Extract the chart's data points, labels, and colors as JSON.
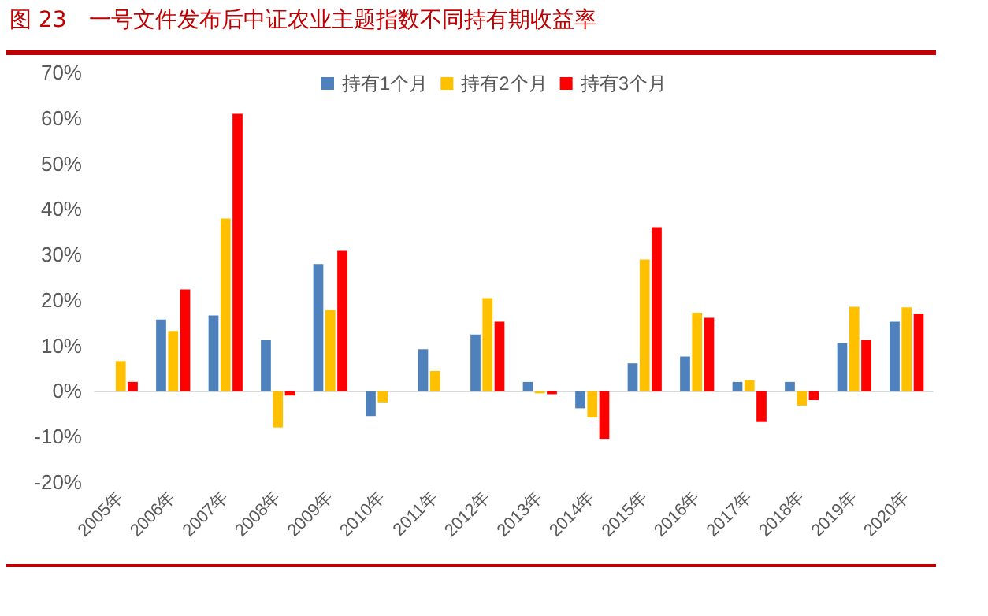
{
  "chart_data": {
    "type": "bar",
    "title": "图 23　一号文件发布后中证农业主题指数不同持有期收益率",
    "categories": [
      "2005年",
      "2006年",
      "2007年",
      "2008年",
      "2009年",
      "2010年",
      "2011年",
      "2012年",
      "2013年",
      "2014年",
      "2015年",
      "2016年",
      "2017年",
      "2018年",
      "2019年",
      "2020年"
    ],
    "series": [
      {
        "name": "持有1个月",
        "color": "#4f81bd",
        "values": [
          0,
          15.7,
          16.6,
          11.2,
          27.9,
          -5.5,
          9.2,
          12.4,
          2.0,
          -3.8,
          6.1,
          7.6,
          2.0,
          2.0,
          10.5,
          15.2
        ]
      },
      {
        "name": "持有2个月",
        "color": "#ffc000",
        "values": [
          6.6,
          13.2,
          37.9,
          -8.0,
          17.8,
          -2.5,
          4.4,
          20.4,
          -0.5,
          -5.8,
          28.9,
          17.2,
          2.4,
          -3.2,
          18.5,
          18.4
        ]
      },
      {
        "name": "持有3个月",
        "color": "#ff0000",
        "values": [
          2.0,
          22.3,
          60.9,
          -1.0,
          30.8,
          0,
          0,
          15.2,
          -0.7,
          -10.5,
          36.0,
          16.1,
          -6.8,
          -2.0,
          11.2,
          17.0
        ]
      }
    ],
    "ylim": [
      -20,
      70
    ],
    "yticks": [
      {
        "value": -20,
        "label": "-20%"
      },
      {
        "value": -10,
        "label": "-10%"
      },
      {
        "value": 0,
        "label": "0%"
      },
      {
        "value": 10,
        "label": "10%"
      },
      {
        "value": 20,
        "label": "20%"
      },
      {
        "value": 30,
        "label": "30%"
      },
      {
        "value": 40,
        "label": "40%"
      },
      {
        "value": 50,
        "label": "50%"
      },
      {
        "value": 60,
        "label": "60%"
      },
      {
        "value": 70,
        "label": "70%"
      }
    ],
    "legend": "top"
  }
}
